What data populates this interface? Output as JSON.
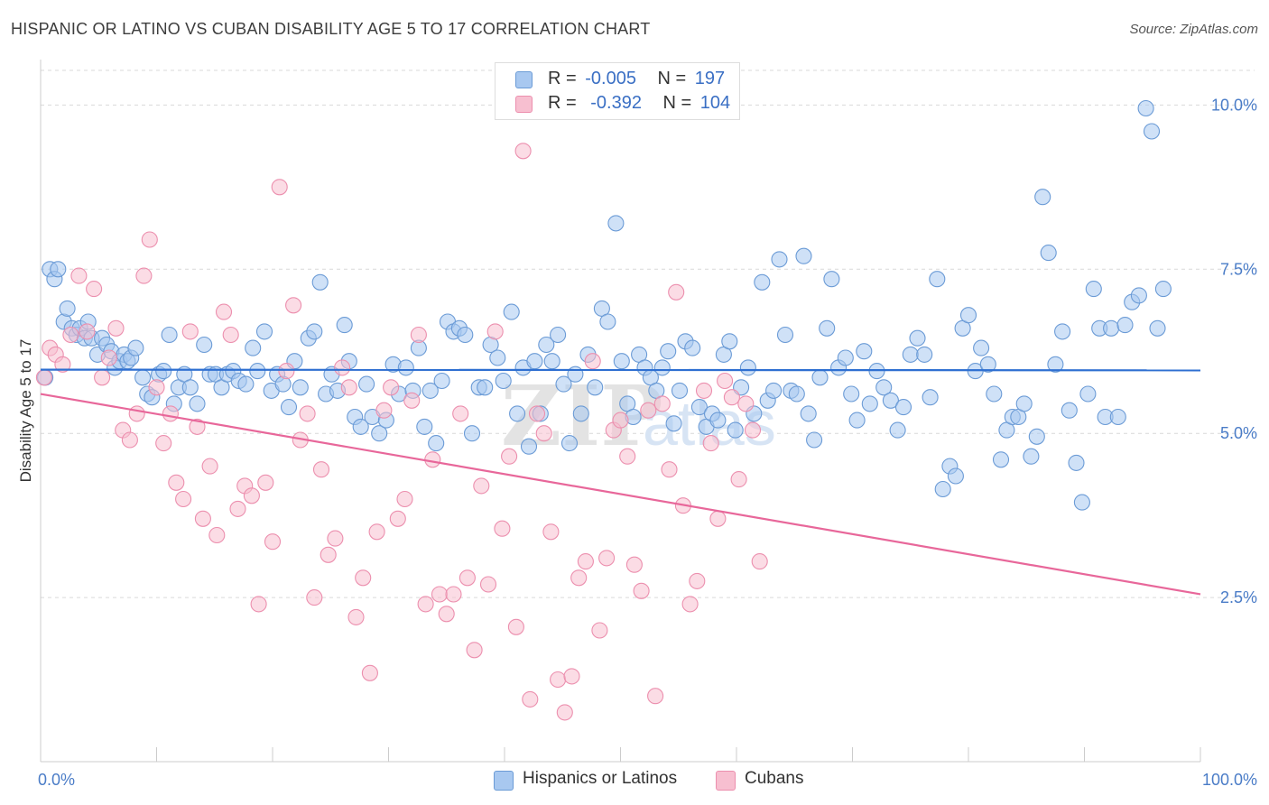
{
  "title": "HISPANIC OR LATINO VS CUBAN DISABILITY AGE 5 TO 17 CORRELATION CHART",
  "source": "Source: ZipAtlas.com",
  "watermark": {
    "zip": "ZIP",
    "atlas": "atlas"
  },
  "colors": {
    "blue_fill": "#a8c8f0",
    "blue_stroke": "#6b9bd6",
    "blue_line": "#2e6fd1",
    "pink_fill": "#f7bfd0",
    "pink_stroke": "#ec8fae",
    "pink_line": "#e8679a",
    "tick_text": "#4a7cc7",
    "grid": "#d9d9d9"
  },
  "legend": {
    "rows": [
      {
        "r_label": "R =",
        "r_value": "-0.005",
        "n_label": "N =",
        "n_value": "197",
        "series": "Hispanics or Latinos"
      },
      {
        "r_label": "R =",
        "r_value": "-0.392",
        "n_label": "N =",
        "n_value": "104",
        "series": "Cubans"
      }
    ]
  },
  "bottom_legend": [
    "Hispanics or Latinos",
    "Cubans"
  ],
  "chart_data": {
    "type": "scatter",
    "title": "HISPANIC OR LATINO VS CUBAN DISABILITY AGE 5 TO 17 CORRELATION CHART",
    "xlabel": "",
    "ylabel": "Disability Age 5 to 17",
    "xlim": [
      0,
      100
    ],
    "ylim": [
      0,
      10.5
    ],
    "x_tick_labels": [
      "0.0%",
      "100.0%"
    ],
    "y_ticks": [
      2.5,
      5.0,
      7.5,
      10.0
    ],
    "y_tick_labels": [
      "2.5%",
      "5.0%",
      "7.5%",
      "10.0%"
    ],
    "grid": true,
    "series": [
      {
        "name": "Hispanics or Latinos",
        "color": "#a8c8f0",
        "trend": {
          "x": [
            0,
            100
          ],
          "y": [
            5.97,
            5.96
          ]
        },
        "points": [
          [
            0.4,
            5.85
          ],
          [
            0.8,
            7.5
          ],
          [
            1.2,
            7.35
          ],
          [
            1.5,
            7.5
          ],
          [
            2,
            6.7
          ],
          [
            2.3,
            6.9
          ],
          [
            2.7,
            6.6
          ],
          [
            3.1,
            6.5
          ],
          [
            3.4,
            6.6
          ],
          [
            3.8,
            6.45
          ],
          [
            4.1,
            6.7
          ],
          [
            4.4,
            6.45
          ],
          [
            4.9,
            6.2
          ],
          [
            5.3,
            6.45
          ],
          [
            5.7,
            6.35
          ],
          [
            6.1,
            6.25
          ],
          [
            6.4,
            6.0
          ],
          [
            6.8,
            6.1
          ],
          [
            7.2,
            6.2
          ],
          [
            7.5,
            6.1
          ],
          [
            7.8,
            6.15
          ],
          [
            8.2,
            6.3
          ],
          [
            8.8,
            5.85
          ],
          [
            9.2,
            5.6
          ],
          [
            9.6,
            5.55
          ],
          [
            10.2,
            5.9
          ],
          [
            10.6,
            5.95
          ],
          [
            11.1,
            6.5
          ],
          [
            11.5,
            5.45
          ],
          [
            11.9,
            5.7
          ],
          [
            12.4,
            5.9
          ],
          [
            12.9,
            5.7
          ],
          [
            13.5,
            5.45
          ],
          [
            14.1,
            6.35
          ],
          [
            14.6,
            5.9
          ],
          [
            15.1,
            5.9
          ],
          [
            15.6,
            5.7
          ],
          [
            16.1,
            5.9
          ],
          [
            16.6,
            5.95
          ],
          [
            17.1,
            5.8
          ],
          [
            17.7,
            5.75
          ],
          [
            18.3,
            6.3
          ],
          [
            18.7,
            5.95
          ],
          [
            19.3,
            6.55
          ],
          [
            19.9,
            5.65
          ],
          [
            20.4,
            5.9
          ],
          [
            20.9,
            5.75
          ],
          [
            21.4,
            5.4
          ],
          [
            21.9,
            6.1
          ],
          [
            22.4,
            5.7
          ],
          [
            23.1,
            6.45
          ],
          [
            23.6,
            6.55
          ],
          [
            24.1,
            7.3
          ],
          [
            24.6,
            5.6
          ],
          [
            25.1,
            5.9
          ],
          [
            25.6,
            5.65
          ],
          [
            26.2,
            6.65
          ],
          [
            26.6,
            6.1
          ],
          [
            27.1,
            5.25
          ],
          [
            27.6,
            5.1
          ],
          [
            28.1,
            5.75
          ],
          [
            28.6,
            5.25
          ],
          [
            29.2,
            5.0
          ],
          [
            29.8,
            5.2
          ],
          [
            30.4,
            6.05
          ],
          [
            30.9,
            5.6
          ],
          [
            31.5,
            6.0
          ],
          [
            32.1,
            5.65
          ],
          [
            32.6,
            6.3
          ],
          [
            33.1,
            5.1
          ],
          [
            33.6,
            5.65
          ],
          [
            34.1,
            4.85
          ],
          [
            34.6,
            5.8
          ],
          [
            35.1,
            6.7
          ],
          [
            35.6,
            6.55
          ],
          [
            36.1,
            6.6
          ],
          [
            36.6,
            6.5
          ],
          [
            37.2,
            5.0
          ],
          [
            37.8,
            5.7
          ],
          [
            38.3,
            5.7
          ],
          [
            38.8,
            6.35
          ],
          [
            39.4,
            6.15
          ],
          [
            39.9,
            5.8
          ],
          [
            40.6,
            6.85
          ],
          [
            41.1,
            5.3
          ],
          [
            41.6,
            6.0
          ],
          [
            42.1,
            4.8
          ],
          [
            42.6,
            6.1
          ],
          [
            43.1,
            5.3
          ],
          [
            43.6,
            6.35
          ],
          [
            44.1,
            6.1
          ],
          [
            44.6,
            6.5
          ],
          [
            45.1,
            5.75
          ],
          [
            45.6,
            4.85
          ],
          [
            46.1,
            5.9
          ],
          [
            46.6,
            5.3
          ],
          [
            47.2,
            6.2
          ],
          [
            47.8,
            5.7
          ],
          [
            48.4,
            6.9
          ],
          [
            48.9,
            6.7
          ],
          [
            49.6,
            8.2
          ],
          [
            50.1,
            6.1
          ],
          [
            50.6,
            5.45
          ],
          [
            51.1,
            5.25
          ],
          [
            51.6,
            6.2
          ],
          [
            52.1,
            6.0
          ],
          [
            52.6,
            5.85
          ],
          [
            53.1,
            5.65
          ],
          [
            53.6,
            6.0
          ],
          [
            54.1,
            6.25
          ],
          [
            54.6,
            5.15
          ],
          [
            55.1,
            5.65
          ],
          [
            55.6,
            6.4
          ],
          [
            56.2,
            6.3
          ],
          [
            56.8,
            5.4
          ],
          [
            57.4,
            5.1
          ],
          [
            57.9,
            5.3
          ],
          [
            58.4,
            5.2
          ],
          [
            58.9,
            6.2
          ],
          [
            59.4,
            6.4
          ],
          [
            59.9,
            5.05
          ],
          [
            60.4,
            5.7
          ],
          [
            61.0,
            6.0
          ],
          [
            61.5,
            5.3
          ],
          [
            62.2,
            7.3
          ],
          [
            62.7,
            5.5
          ],
          [
            63.2,
            5.65
          ],
          [
            63.7,
            7.65
          ],
          [
            64.2,
            6.5
          ],
          [
            64.7,
            5.65
          ],
          [
            65.2,
            5.6
          ],
          [
            65.8,
            7.7
          ],
          [
            66.2,
            5.3
          ],
          [
            66.7,
            4.9
          ],
          [
            67.2,
            5.85
          ],
          [
            67.8,
            6.6
          ],
          [
            68.2,
            7.35
          ],
          [
            68.8,
            6.0
          ],
          [
            69.4,
            6.15
          ],
          [
            69.9,
            5.6
          ],
          [
            70.4,
            5.2
          ],
          [
            71.0,
            6.25
          ],
          [
            71.5,
            5.45
          ],
          [
            72.1,
            5.95
          ],
          [
            72.7,
            5.7
          ],
          [
            73.3,
            5.5
          ],
          [
            73.9,
            5.05
          ],
          [
            74.4,
            5.4
          ],
          [
            75.0,
            6.2
          ],
          [
            75.6,
            6.45
          ],
          [
            76.2,
            6.2
          ],
          [
            76.7,
            5.55
          ],
          [
            77.3,
            7.35
          ],
          [
            77.8,
            4.15
          ],
          [
            78.4,
            4.5
          ],
          [
            78.9,
            4.35
          ],
          [
            79.5,
            6.6
          ],
          [
            80.0,
            6.8
          ],
          [
            80.6,
            5.95
          ],
          [
            81.1,
            6.3
          ],
          [
            81.7,
            6.05
          ],
          [
            82.2,
            5.6
          ],
          [
            82.8,
            4.6
          ],
          [
            83.3,
            5.05
          ],
          [
            83.8,
            5.25
          ],
          [
            84.3,
            5.25
          ],
          [
            84.8,
            5.45
          ],
          [
            85.4,
            4.65
          ],
          [
            85.9,
            4.95
          ],
          [
            86.4,
            8.6
          ],
          [
            86.9,
            7.75
          ],
          [
            87.5,
            6.05
          ],
          [
            88.1,
            6.55
          ],
          [
            88.7,
            5.35
          ],
          [
            89.3,
            4.55
          ],
          [
            89.8,
            3.95
          ],
          [
            90.3,
            5.6
          ],
          [
            90.8,
            7.2
          ],
          [
            91.3,
            6.6
          ],
          [
            91.8,
            5.25
          ],
          [
            92.3,
            6.6
          ],
          [
            92.9,
            5.25
          ],
          [
            93.5,
            6.65
          ],
          [
            94.1,
            7.0
          ],
          [
            94.7,
            7.1
          ],
          [
            95.3,
            9.95
          ],
          [
            95.8,
            9.6
          ],
          [
            96.3,
            6.6
          ],
          [
            96.8,
            7.2
          ]
        ]
      },
      {
        "name": "Cubans",
        "color": "#f7bfd0",
        "trend": {
          "x": [
            0,
            100
          ],
          "y": [
            5.6,
            2.55
          ]
        },
        "points": [
          [
            0.3,
            5.85
          ],
          [
            0.8,
            6.3
          ],
          [
            1.3,
            6.2
          ],
          [
            1.9,
            6.05
          ],
          [
            2.6,
            6.5
          ],
          [
            3.3,
            7.4
          ],
          [
            4.0,
            6.55
          ],
          [
            4.6,
            7.2
          ],
          [
            5.3,
            5.85
          ],
          [
            5.9,
            6.15
          ],
          [
            6.5,
            6.6
          ],
          [
            7.1,
            5.05
          ],
          [
            7.7,
            4.9
          ],
          [
            8.3,
            5.3
          ],
          [
            8.9,
            7.4
          ],
          [
            9.4,
            7.95
          ],
          [
            10.0,
            5.7
          ],
          [
            10.6,
            4.85
          ],
          [
            11.2,
            5.3
          ],
          [
            11.7,
            4.25
          ],
          [
            12.3,
            4.0
          ],
          [
            12.9,
            6.55
          ],
          [
            13.5,
            5.1
          ],
          [
            14.0,
            3.7
          ],
          [
            14.6,
            4.5
          ],
          [
            15.2,
            3.45
          ],
          [
            15.8,
            6.85
          ],
          [
            16.4,
            6.5
          ],
          [
            17.0,
            3.85
          ],
          [
            17.6,
            4.2
          ],
          [
            18.2,
            4.05
          ],
          [
            18.8,
            2.4
          ],
          [
            19.4,
            4.25
          ],
          [
            20.0,
            3.35
          ],
          [
            20.6,
            8.75
          ],
          [
            21.2,
            5.95
          ],
          [
            21.8,
            6.95
          ],
          [
            22.4,
            4.9
          ],
          [
            23.0,
            5.3
          ],
          [
            23.6,
            2.5
          ],
          [
            24.2,
            4.45
          ],
          [
            24.8,
            3.15
          ],
          [
            25.4,
            3.4
          ],
          [
            26.0,
            6.0
          ],
          [
            26.6,
            5.7
          ],
          [
            27.2,
            2.2
          ],
          [
            27.8,
            2.8
          ],
          [
            28.4,
            1.35
          ],
          [
            29.0,
            3.5
          ],
          [
            29.6,
            5.35
          ],
          [
            30.2,
            5.7
          ],
          [
            30.8,
            3.7
          ],
          [
            31.4,
            4.0
          ],
          [
            32.0,
            5.5
          ],
          [
            32.6,
            6.5
          ],
          [
            33.2,
            2.4
          ],
          [
            33.8,
            4.6
          ],
          [
            34.4,
            2.55
          ],
          [
            35.0,
            2.25
          ],
          [
            35.6,
            2.55
          ],
          [
            36.2,
            5.3
          ],
          [
            36.8,
            2.8
          ],
          [
            37.4,
            1.7
          ],
          [
            38.0,
            4.2
          ],
          [
            38.6,
            2.7
          ],
          [
            39.2,
            6.55
          ],
          [
            39.8,
            3.55
          ],
          [
            40.4,
            4.65
          ],
          [
            41.0,
            2.05
          ],
          [
            41.6,
            9.3
          ],
          [
            42.2,
            0.95
          ],
          [
            42.8,
            5.3
          ],
          [
            43.4,
            5.0
          ],
          [
            44.0,
            3.5
          ],
          [
            44.6,
            1.25
          ],
          [
            45.2,
            0.75
          ],
          [
            45.8,
            1.3
          ],
          [
            46.4,
            2.8
          ],
          [
            47.0,
            3.05
          ],
          [
            47.6,
            6.1
          ],
          [
            48.2,
            2.0
          ],
          [
            48.8,
            3.1
          ],
          [
            49.4,
            5.05
          ],
          [
            50.0,
            5.2
          ],
          [
            50.6,
            4.65
          ],
          [
            51.2,
            3.0
          ],
          [
            51.8,
            2.6
          ],
          [
            52.4,
            5.35
          ],
          [
            53.0,
            1.0
          ],
          [
            53.6,
            5.45
          ],
          [
            54.2,
            4.45
          ],
          [
            54.8,
            7.15
          ],
          [
            55.4,
            3.9
          ],
          [
            56.0,
            2.4
          ],
          [
            56.6,
            2.75
          ],
          [
            57.2,
            5.65
          ],
          [
            57.8,
            4.85
          ],
          [
            58.4,
            3.7
          ],
          [
            59.0,
            5.8
          ],
          [
            59.6,
            5.55
          ],
          [
            60.2,
            4.3
          ],
          [
            60.8,
            5.45
          ],
          [
            61.4,
            5.05
          ],
          [
            62.0,
            3.05
          ]
        ]
      }
    ]
  }
}
